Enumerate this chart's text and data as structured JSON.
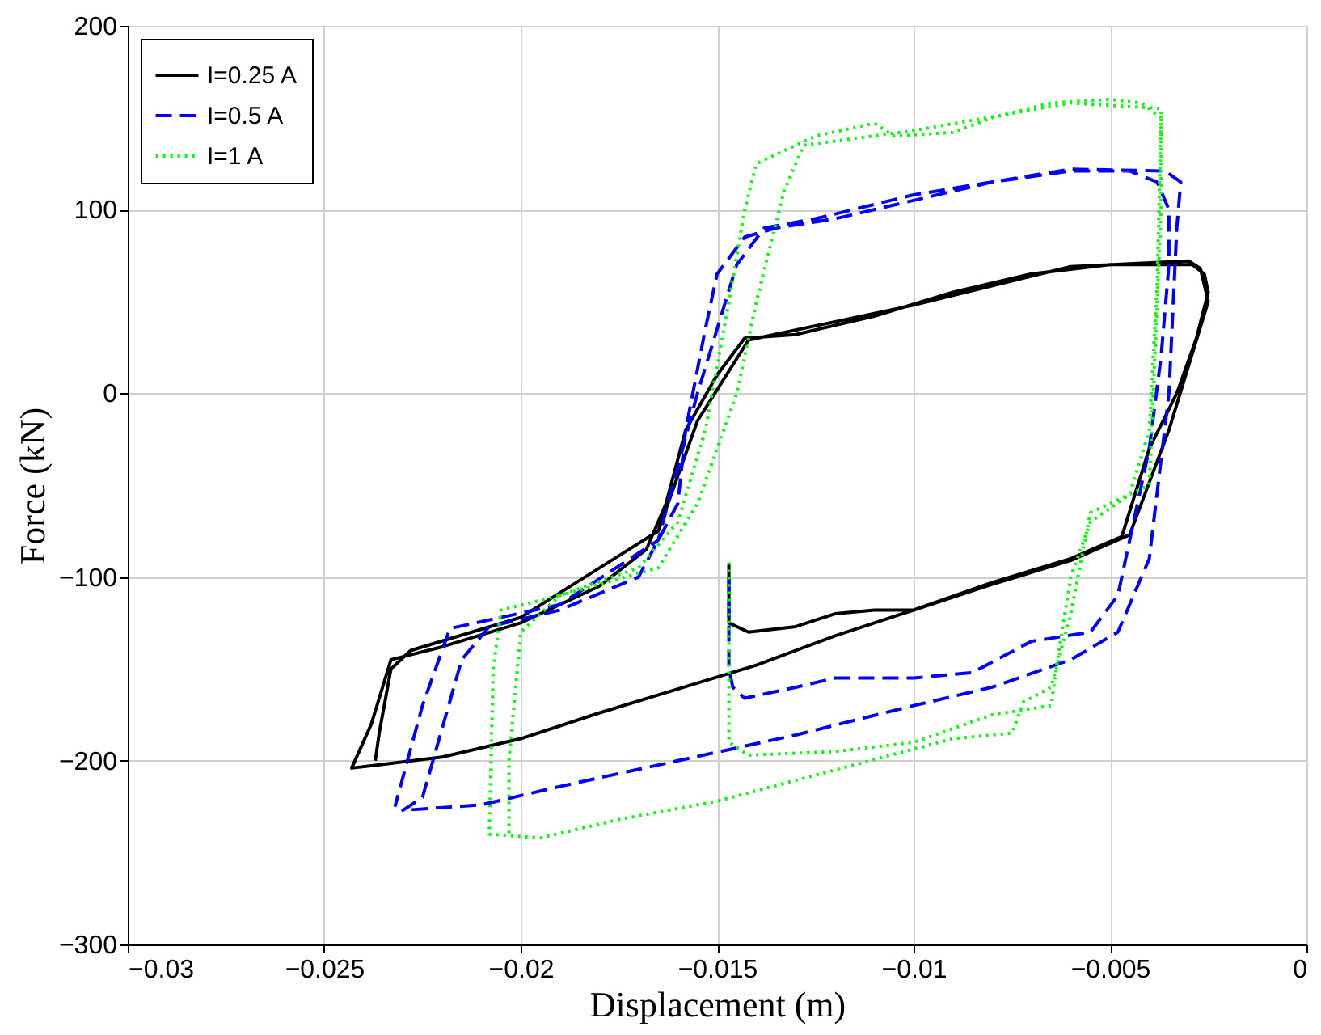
{
  "chart_data": {
    "type": "line",
    "xlabel": "Displacement (m)",
    "ylabel": "Force (kN)",
    "xlim": [
      -0.03,
      0
    ],
    "xticks": [
      -0.03,
      -0.025,
      -0.02,
      -0.015,
      -0.01,
      -0.005,
      0
    ],
    "ylim": [
      -300,
      200
    ],
    "yticks": [
      -300,
      -200,
      -100,
      0,
      100,
      200
    ],
    "grid": true,
    "legend": "top left",
    "marker": "none",
    "series": [
      {
        "name": "I=0.25 A",
        "color": "#000000",
        "line_style": "solid",
        "x": [
          -0.0147,
          -0.0147,
          -0.0142,
          -0.013,
          -0.012,
          -0.011,
          -0.01,
          -0.008,
          -0.006,
          -0.0047,
          -0.004,
          -0.0033,
          -0.0028,
          -0.0025,
          -0.0026,
          -0.0029,
          -0.005,
          -0.007,
          -0.009,
          -0.011,
          -0.013,
          -0.0143,
          -0.015,
          -0.0158,
          -0.0163,
          -0.0168,
          -0.018,
          -0.02,
          -0.022,
          -0.0233,
          -0.0238,
          -0.0243,
          -0.0235,
          -0.022,
          -0.02,
          -0.018,
          -0.016,
          -0.014,
          -0.012,
          -0.01,
          -0.008,
          -0.006,
          -0.0045,
          -0.0035,
          -0.0025,
          -0.0027,
          -0.003,
          -0.006,
          -0.01,
          -0.0142,
          -0.0155,
          -0.0165,
          -0.02,
          -0.0228,
          -0.0233,
          -0.0236,
          -0.0237
        ],
        "values": [
          -93,
          -125,
          -130,
          -127,
          -120,
          -118,
          -118,
          -103,
          -90,
          -78,
          -30,
          0,
          30,
          55,
          65,
          70,
          70,
          65,
          55,
          42,
          32,
          30,
          10,
          -20,
          -60,
          -85,
          -105,
          -125,
          -138,
          -145,
          -180,
          -204,
          -202,
          -198,
          -188,
          -174,
          -161,
          -148,
          -132,
          -118,
          -104,
          -91,
          -77,
          -20,
          50,
          68,
          72,
          69,
          48,
          29,
          -15,
          -75,
          -122,
          -140,
          -150,
          -185,
          -200
        ]
      },
      {
        "name": "I=0.5 A",
        "color": "#0000ff",
        "line_style": "dashed",
        "x": [
          -0.0147,
          -0.0147,
          -0.0146,
          -0.0143,
          -0.013,
          -0.012,
          -0.01,
          -0.0085,
          -0.007,
          -0.0055,
          -0.0048,
          -0.0045,
          -0.004,
          -0.0037,
          -0.0035,
          -0.0035,
          -0.0038,
          -0.0045,
          -0.006,
          -0.008,
          -0.01,
          -0.012,
          -0.0135,
          -0.0143,
          -0.015,
          -0.0153,
          -0.0158,
          -0.016,
          -0.017,
          -0.019,
          -0.0208,
          -0.0215,
          -0.0225,
          -0.023,
          -0.021,
          -0.019,
          -0.016,
          -0.013,
          -0.01,
          -0.008,
          -0.006,
          -0.0048,
          -0.004,
          -0.0035,
          -0.0033,
          -0.0032,
          -0.0036,
          -0.006,
          -0.01,
          -0.0125,
          -0.0138,
          -0.0145,
          -0.0155,
          -0.0165,
          -0.019,
          -0.0218,
          -0.0225,
          -0.0232
        ],
        "values": [
          -100,
          -150,
          -160,
          -166,
          -160,
          -155,
          -155,
          -152,
          -135,
          -130,
          -110,
          -80,
          -30,
          20,
          70,
          100,
          115,
          121,
          121,
          115,
          105,
          95,
          90,
          85,
          65,
          35,
          -20,
          -60,
          -100,
          -118,
          -127,
          -145,
          -220,
          -227,
          -224,
          -214,
          -200,
          -186,
          -170,
          -160,
          -145,
          -130,
          -90,
          0,
          90,
          115,
          121,
          122,
          108,
          95,
          90,
          70,
          0,
          -80,
          -115,
          -128,
          -170,
          -225
        ]
      },
      {
        "name": "I=1 A",
        "color": "#00ff00",
        "line_style": "dotted",
        "x": [
          -0.0147,
          -0.0147,
          -0.0142,
          -0.012,
          -0.01,
          -0.008,
          -0.0065,
          -0.0063,
          -0.006,
          -0.0055,
          -0.0045,
          -0.004,
          -0.0038,
          -0.0037,
          -0.0042,
          -0.005,
          -0.0065,
          -0.008,
          -0.009,
          -0.0105,
          -0.011,
          -0.0125,
          -0.0135,
          -0.014,
          -0.0143,
          -0.0147,
          -0.0153,
          -0.016,
          -0.017,
          -0.019,
          -0.0205,
          -0.0207,
          -0.0208,
          -0.0195,
          -0.0175,
          -0.015,
          -0.012,
          -0.009,
          -0.0075,
          -0.0072,
          -0.0065,
          -0.006,
          -0.0055,
          -0.004,
          -0.0037,
          -0.0037,
          -0.006,
          -0.01,
          -0.0128,
          -0.0133,
          -0.014,
          -0.0145,
          -0.0155,
          -0.0165,
          -0.019,
          -0.02,
          -0.0203,
          -0.0203
        ],
        "values": [
          -92,
          -190,
          -197,
          -195,
          -190,
          -175,
          -170,
          -140,
          -100,
          -70,
          -55,
          -20,
          60,
          150,
          158,
          160,
          158,
          150,
          142,
          140,
          147,
          140,
          130,
          125,
          100,
          50,
          -20,
          -70,
          -95,
          -110,
          -118,
          -150,
          -240,
          -242,
          -232,
          -222,
          -205,
          -188,
          -185,
          -168,
          -160,
          -120,
          -65,
          -50,
          100,
          155,
          158,
          143,
          135,
          110,
          50,
          0,
          -60,
          -95,
          -110,
          -130,
          -200,
          -240
        ]
      }
    ]
  }
}
